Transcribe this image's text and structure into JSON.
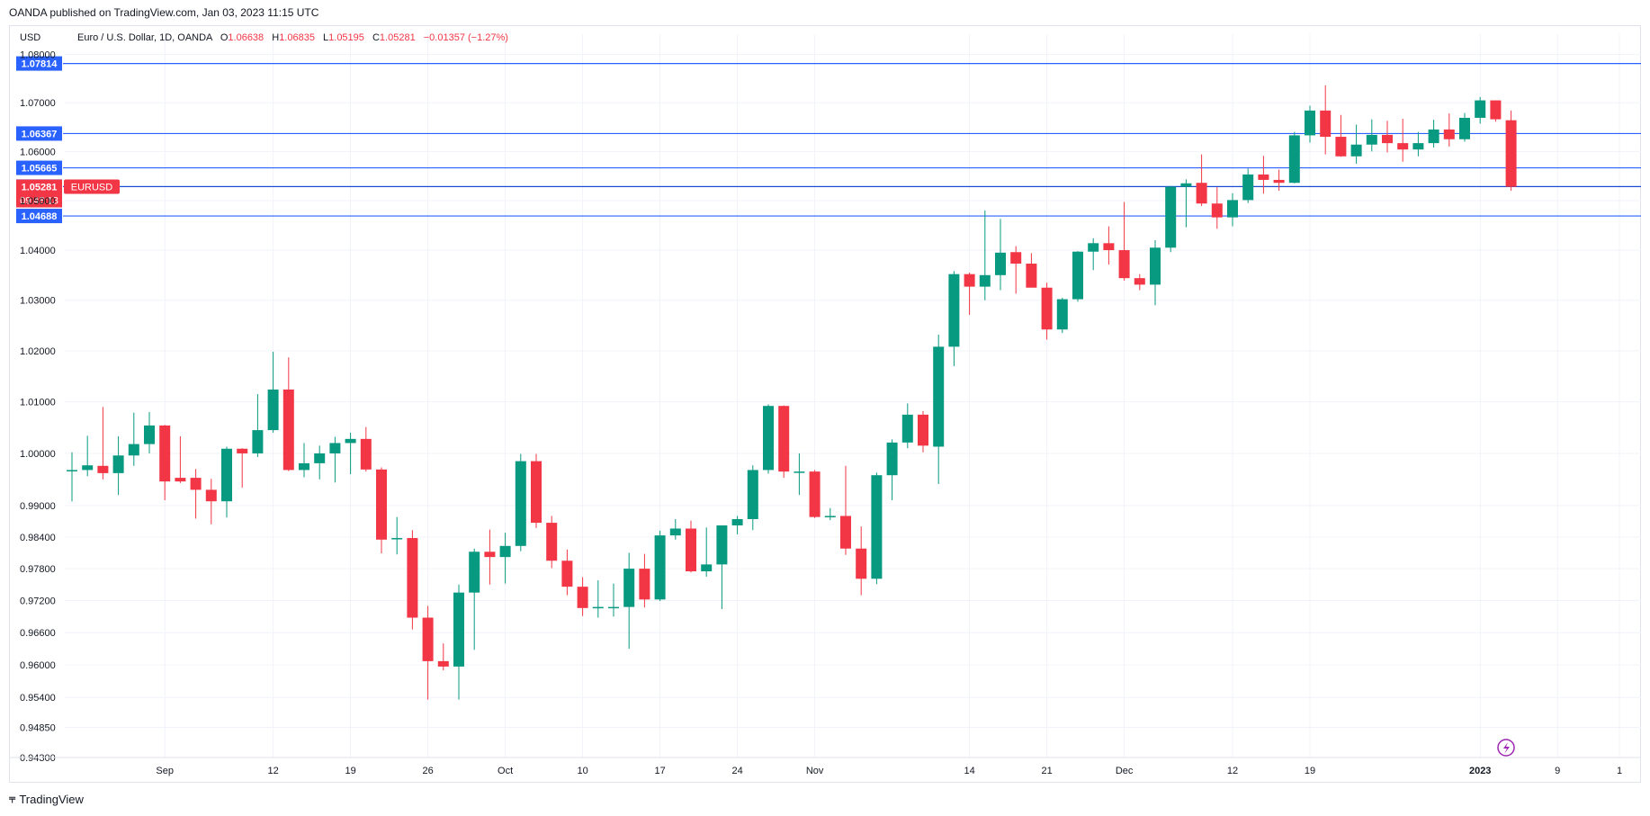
{
  "header": {
    "publish_note": "OANDA published on TradingView.com, Jan 03, 2023 11:15 UTC",
    "currency": "USD",
    "symbol_title": "Euro / U.S. Dollar, 1D, OANDA",
    "ohlc": {
      "o_label": "O",
      "o": "1.06638",
      "h_label": "H",
      "h": "1.06835",
      "l_label": "L",
      "l": "1.05195",
      "c_label": "C",
      "c": "1.05281",
      "change": "−0.01357 (−1.27%)"
    }
  },
  "footer": {
    "brand": "TradingView",
    "logo_icon": "tradingview-logo-icon"
  },
  "colors": {
    "up": "#089981",
    "down": "#f23645",
    "level": "#2962ff",
    "price": "#f23645",
    "grid": "#f0f3fa",
    "axis_text": "#131722"
  },
  "chart_data": {
    "type": "candlestick",
    "title": "Euro / U.S. Dollar, 1D, OANDA",
    "ylim": [
      0.943,
      1.0805
    ],
    "y_scale": "log",
    "grid": true,
    "y_ticks": [
      "1.08000",
      "1.07000",
      "1.06000",
      "1.05000",
      "1.04000",
      "1.03000",
      "1.02000",
      "1.01000",
      "1.00000",
      "0.99000",
      "0.98400",
      "0.97800",
      "0.97200",
      "0.96600",
      "0.96000",
      "0.95400",
      "0.94850",
      "0.94300"
    ],
    "x_ticks": [
      "Sep",
      "12",
      "19",
      "26",
      "Oct",
      "10",
      "17",
      "24",
      "Nov",
      "14",
      "21",
      "Dec",
      "12",
      "19",
      "2023",
      "9",
      "1"
    ],
    "x_tick_bars": [
      6,
      13,
      18,
      23,
      28,
      33,
      38,
      43,
      48,
      58,
      63,
      68,
      75,
      80,
      91,
      96,
      100
    ],
    "levels": [
      "1.07814",
      "1.06367",
      "1.05665",
      "1.05284",
      "1.04688"
    ],
    "last_price": {
      "value": "1.05281",
      "countdown": "09:48:13",
      "label": "EURUSD"
    },
    "candles": [
      {
        "o": 0.9968,
        "h": 1.0002,
        "l": 0.9908,
        "c": 0.9968
      },
      {
        "o": 0.9968,
        "h": 1.0034,
        "l": 0.9956,
        "c": 0.9977
      },
      {
        "o": 0.9976,
        "h": 1.009,
        "l": 0.995,
        "c": 0.9962
      },
      {
        "o": 0.9962,
        "h": 1.0033,
        "l": 0.992,
        "c": 0.9996
      },
      {
        "o": 0.9996,
        "h": 1.0079,
        "l": 0.9976,
        "c": 1.0018
      },
      {
        "o": 1.0018,
        "h": 1.008,
        "l": 1.0,
        "c": 1.0054
      },
      {
        "o": 1.0054,
        "h": 1.0055,
        "l": 0.991,
        "c": 0.9946
      },
      {
        "o": 0.9953,
        "h": 1.0033,
        "l": 0.9943,
        "c": 0.9946
      },
      {
        "o": 0.9953,
        "h": 0.997,
        "l": 0.9875,
        "c": 0.993
      },
      {
        "o": 0.993,
        "h": 0.9951,
        "l": 0.9864,
        "c": 0.9908
      },
      {
        "o": 0.9908,
        "h": 1.0013,
        "l": 0.9877,
        "c": 1.0009
      },
      {
        "o": 1.0009,
        "h": 1.001,
        "l": 0.9934,
        "c": 1.0
      },
      {
        "o": 1.0,
        "h": 1.0115,
        "l": 0.9993,
        "c": 1.0045
      },
      {
        "o": 1.0045,
        "h": 1.0198,
        "l": 1.004,
        "c": 1.0124
      },
      {
        "o": 1.0124,
        "h": 1.0187,
        "l": 0.9966,
        "c": 0.9968
      },
      {
        "o": 0.9968,
        "h": 1.002,
        "l": 0.9954,
        "c": 0.9981
      },
      {
        "o": 0.9981,
        "h": 1.0015,
        "l": 0.995,
        "c": 1.0
      },
      {
        "o": 1.0,
        "h": 1.0032,
        "l": 0.9944,
        "c": 1.002
      },
      {
        "o": 1.002,
        "h": 1.004,
        "l": 0.996,
        "c": 1.0028
      },
      {
        "o": 1.0028,
        "h": 1.0051,
        "l": 0.9965,
        "c": 0.9969
      },
      {
        "o": 0.9969,
        "h": 0.9973,
        "l": 0.9809,
        "c": 0.9835
      },
      {
        "o": 0.9838,
        "h": 0.9878,
        "l": 0.9807,
        "c": 0.9838
      },
      {
        "o": 0.9838,
        "h": 0.9853,
        "l": 0.9666,
        "c": 0.9688
      },
      {
        "o": 0.9688,
        "h": 0.971,
        "l": 0.9536,
        "c": 0.9607
      },
      {
        "o": 0.9607,
        "h": 0.964,
        "l": 0.959,
        "c": 0.9597
      },
      {
        "o": 0.9597,
        "h": 0.975,
        "l": 0.9536,
        "c": 0.9735
      },
      {
        "o": 0.9735,
        "h": 0.9818,
        "l": 0.9628,
        "c": 0.9812
      },
      {
        "o": 0.9812,
        "h": 0.9854,
        "l": 0.975,
        "c": 0.9802
      },
      {
        "o": 0.9802,
        "h": 0.9848,
        "l": 0.9752,
        "c": 0.9823
      },
      {
        "o": 0.9823,
        "h": 0.9999,
        "l": 0.9813,
        "c": 0.9985
      },
      {
        "o": 0.9985,
        "h": 0.9999,
        "l": 0.9857,
        "c": 0.9867
      },
      {
        "o": 0.9867,
        "h": 0.988,
        "l": 0.9781,
        "c": 0.9795
      },
      {
        "o": 0.9795,
        "h": 0.9816,
        "l": 0.973,
        "c": 0.9746
      },
      {
        "o": 0.9746,
        "h": 0.9764,
        "l": 0.9691,
        "c": 0.9706
      },
      {
        "o": 0.9706,
        "h": 0.9758,
        "l": 0.9688,
        "c": 0.9708
      },
      {
        "o": 0.9708,
        "h": 0.9752,
        "l": 0.969,
        "c": 0.9708
      },
      {
        "o": 0.9708,
        "h": 0.981,
        "l": 0.963,
        "c": 0.978
      },
      {
        "o": 0.978,
        "h": 0.9808,
        "l": 0.9707,
        "c": 0.9722
      },
      {
        "o": 0.9722,
        "h": 0.9852,
        "l": 0.9719,
        "c": 0.9843
      },
      {
        "o": 0.9843,
        "h": 0.9874,
        "l": 0.9835,
        "c": 0.9856
      },
      {
        "o": 0.9856,
        "h": 0.9871,
        "l": 0.9773,
        "c": 0.9775
      },
      {
        "o": 0.9775,
        "h": 0.9858,
        "l": 0.9765,
        "c": 0.9788
      },
      {
        "o": 0.9788,
        "h": 0.986,
        "l": 0.9704,
        "c": 0.9862
      },
      {
        "o": 0.9862,
        "h": 0.988,
        "l": 0.9845,
        "c": 0.9874
      },
      {
        "o": 0.9874,
        "h": 0.9977,
        "l": 0.9853,
        "c": 0.9968
      },
      {
        "o": 0.9968,
        "h": 1.0095,
        "l": 0.9961,
        "c": 1.0092
      },
      {
        "o": 1.0092,
        "h": 1.0093,
        "l": 0.9953,
        "c": 0.9965
      },
      {
        "o": 0.9965,
        "h": 1.0,
        "l": 0.992,
        "c": 0.9965
      },
      {
        "o": 0.9965,
        "h": 0.9968,
        "l": 0.9876,
        "c": 0.9878
      },
      {
        "o": 0.9878,
        "h": 0.9895,
        "l": 0.9872,
        "c": 0.988
      },
      {
        "o": 0.988,
        "h": 0.9976,
        "l": 0.9806,
        "c": 0.9818
      },
      {
        "o": 0.9818,
        "h": 0.986,
        "l": 0.973,
        "c": 0.9761
      },
      {
        "o": 0.9761,
        "h": 0.9963,
        "l": 0.9751,
        "c": 0.9958
      },
      {
        "o": 0.9958,
        "h": 1.0027,
        "l": 0.991,
        "c": 1.0021
      },
      {
        "o": 1.0021,
        "h": 1.0097,
        "l": 1.001,
        "c": 1.0075
      },
      {
        "o": 1.0075,
        "h": 1.0082,
        "l": 1.0002,
        "c": 1.0015
      },
      {
        "o": 1.0013,
        "h": 1.0232,
        "l": 0.9941,
        "c": 1.0208
      },
      {
        "o": 1.0208,
        "h": 1.0358,
        "l": 1.017,
        "c": 1.0352
      },
      {
        "o": 1.0352,
        "h": 1.0355,
        "l": 1.0271,
        "c": 1.0327
      },
      {
        "o": 1.0327,
        "h": 1.048,
        "l": 1.03,
        "c": 1.035
      },
      {
        "o": 1.035,
        "h": 1.0463,
        "l": 1.032,
        "c": 1.0395
      },
      {
        "o": 1.0396,
        "h": 1.0408,
        "l": 1.0313,
        "c": 1.0373
      },
      {
        "o": 1.0373,
        "h": 1.0394,
        "l": 1.033,
        "c": 1.0325
      },
      {
        "o": 1.0325,
        "h": 1.0335,
        "l": 1.0222,
        "c": 1.0242
      },
      {
        "o": 1.0242,
        "h": 1.0305,
        "l": 1.0235,
        "c": 1.0302
      },
      {
        "o": 1.0302,
        "h": 1.0398,
        "l": 1.0297,
        "c": 1.0397
      },
      {
        "o": 1.0397,
        "h": 1.0424,
        "l": 1.036,
        "c": 1.0414
      },
      {
        "o": 1.0414,
        "h": 1.0448,
        "l": 1.0371,
        "c": 1.04
      },
      {
        "o": 1.04,
        "h": 1.0497,
        "l": 1.0339,
        "c": 1.0344
      },
      {
        "o": 1.0344,
        "h": 1.0352,
        "l": 1.032,
        "c": 1.0331
      },
      {
        "o": 1.0331,
        "h": 1.042,
        "l": 1.029,
        "c": 1.0405
      },
      {
        "o": 1.0405,
        "h": 1.053,
        "l": 1.0396,
        "c": 1.0528
      },
      {
        "o": 1.0528,
        "h": 1.0543,
        "l": 1.0446,
        "c": 1.0535
      },
      {
        "o": 1.0536,
        "h": 1.0594,
        "l": 1.0489,
        "c": 1.0494
      },
      {
        "o": 1.0494,
        "h": 1.0527,
        "l": 1.0443,
        "c": 1.0466
      },
      {
        "o": 1.0466,
        "h": 1.0515,
        "l": 1.0448,
        "c": 1.0501
      },
      {
        "o": 1.0501,
        "h": 1.0565,
        "l": 1.0495,
        "c": 1.0553
      },
      {
        "o": 1.0553,
        "h": 1.0591,
        "l": 1.0514,
        "c": 1.0542
      },
      {
        "o": 1.0542,
        "h": 1.0563,
        "l": 1.052,
        "c": 1.0536
      },
      {
        "o": 1.0536,
        "h": 1.064,
        "l": 1.0535,
        "c": 1.0633
      },
      {
        "o": 1.0633,
        "h": 1.0694,
        "l": 1.0618,
        "c": 1.0684
      },
      {
        "o": 1.0684,
        "h": 1.0736,
        "l": 1.0594,
        "c": 1.063
      },
      {
        "o": 1.063,
        "h": 1.0675,
        "l": 1.0589,
        "c": 1.059
      },
      {
        "o": 1.059,
        "h": 1.0655,
        "l": 1.0575,
        "c": 1.0614
      },
      {
        "o": 1.0614,
        "h": 1.0666,
        "l": 1.06,
        "c": 1.0634
      },
      {
        "o": 1.0634,
        "h": 1.0663,
        "l": 1.0598,
        "c": 1.0617
      },
      {
        "o": 1.0617,
        "h": 1.0667,
        "l": 1.0579,
        "c": 1.0604
      },
      {
        "o": 1.0604,
        "h": 1.064,
        "l": 1.059,
        "c": 1.0617
      },
      {
        "o": 1.0617,
        "h": 1.0665,
        "l": 1.0608,
        "c": 1.0645
      },
      {
        "o": 1.0645,
        "h": 1.0678,
        "l": 1.061,
        "c": 1.0625
      },
      {
        "o": 1.0625,
        "h": 1.0679,
        "l": 1.062,
        "c": 1.0669
      },
      {
        "o": 1.0669,
        "h": 1.0712,
        "l": 1.0657,
        "c": 1.0705
      },
      {
        "o": 1.0705,
        "h": 1.0705,
        "l": 1.0661,
        "c": 1.0666
      },
      {
        "o": 1.0664,
        "h": 1.0684,
        "l": 1.052,
        "c": 1.0528
      }
    ]
  }
}
